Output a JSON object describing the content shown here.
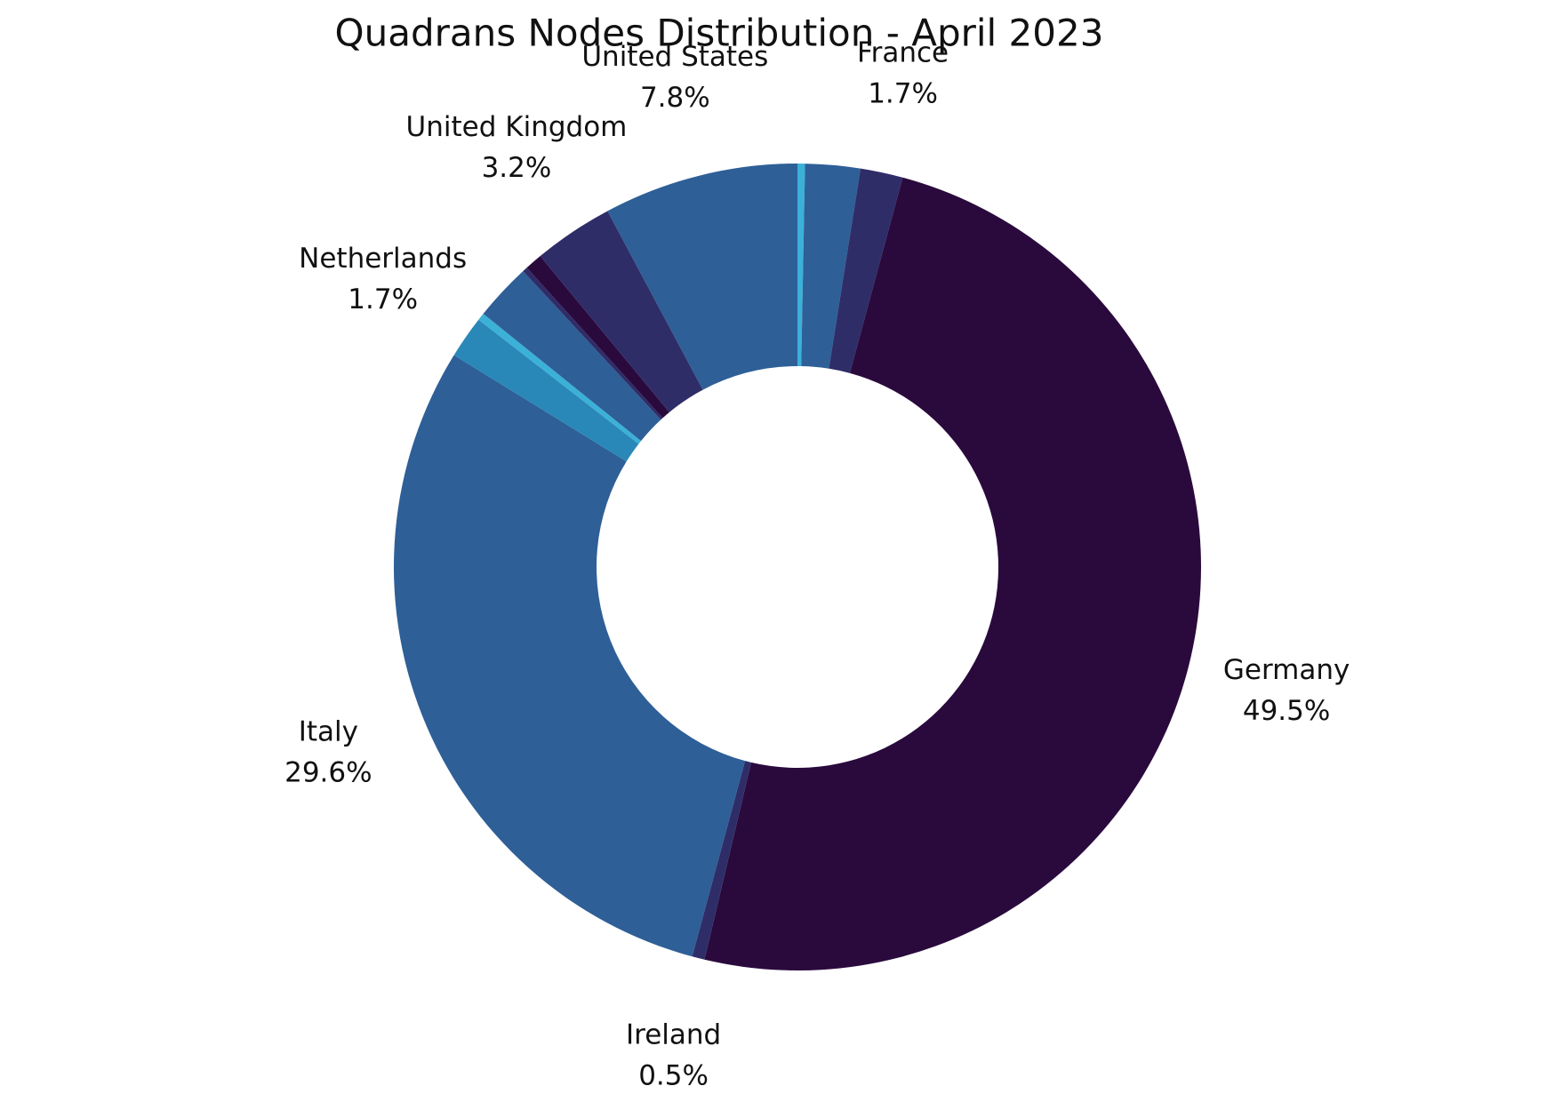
{
  "chart_data": {
    "type": "donut",
    "title": "Quadrans Nodes Distribution - April 2023",
    "categories": [
      null,
      null,
      "France",
      "Germany",
      "Ireland",
      "Italy",
      "Netherlands",
      null,
      null,
      null,
      null,
      "United Kingdom",
      "United States"
    ],
    "values": [
      0.3,
      2.2,
      1.7,
      49.5,
      0.5,
      29.6,
      1.7,
      0.3,
      2.3,
      0.2,
      0.7,
      3.2,
      7.8
    ],
    "value_labels": [
      null,
      null,
      "1.7%",
      "49.5%",
      "0.5%",
      "29.6%",
      "1.7%",
      null,
      null,
      null,
      null,
      "3.2%",
      "7.8%"
    ],
    "colors": [
      "#3bb1d8",
      "#2e5f97",
      "#2f2d68",
      "#2a0a3d",
      "#2f2d68",
      "#2e5f97",
      "#2a88b8",
      "#3bb1d8",
      "#2e5f97",
      "#2f2d68",
      "#2a0a3d",
      "#2f2d68",
      "#2e5f97"
    ]
  }
}
